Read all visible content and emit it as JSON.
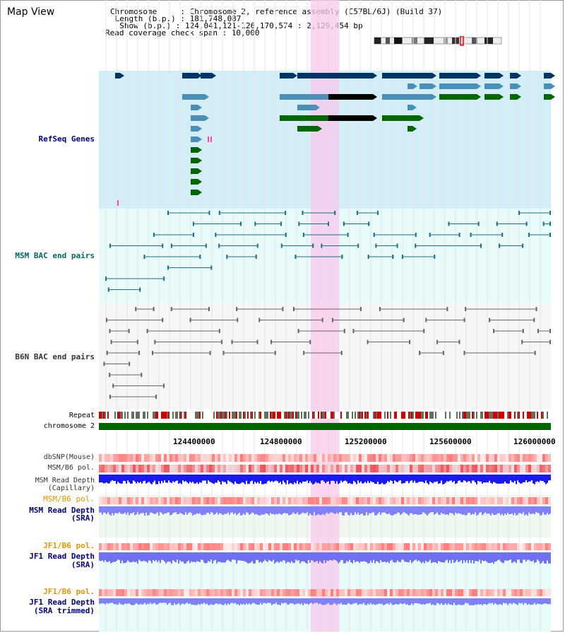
{
  "view_title": "Map View",
  "header": {
    "chromosome_line": "Chromosome     : Chromosome 2, reference assembly (C57BL/6J) (Build 37)",
    "length_line": " Length (b.p.) : 181,748,087",
    "show_line": "  Show (b.p.) : 124,041,121-126,170,574 : 2,129,454 bp",
    "coverage_line": "Read coverage check span : 10,000"
  },
  "tracks": {
    "refseq": "RefSeq Genes",
    "msm_bac": "MSM BAC end pairs",
    "b6n_bac": "B6N BAC end pairs",
    "repeat": "Repeat",
    "chromosome": "chromosome 2",
    "dbsnp": "dbSNP(Mouse)",
    "msm_b6_pol": "MSM/B6 pol.",
    "msm_read_cap_1": "MSM Read Depth",
    "msm_read_cap_2": "(Capillary)",
    "msm_b6_pol_2": "MSM/B6 pol.",
    "msm_read_sra_1": "MSM Read Depth",
    "msm_read_sra_2": "(SRA)",
    "jf1_b6_pol": "JF1/B6 pol.",
    "jf1_read_sra_1": "JF1 Read Depth",
    "jf1_read_sra_2": "(SRA)",
    "jf1_b6_pol_2": "JF1/B6 pol.",
    "jf1_read_trim_1": "JF1 Read Depth",
    "jf1_read_trim_2": "(SRA trimmed)"
  },
  "ruler_ticks": [
    "124400000",
    "124800000",
    "125200000",
    "125600000",
    "126000000"
  ],
  "colors": {
    "refseq_bg": "#d4eef8",
    "bac_bg": "#e8fbfb",
    "b6n_bg": "#f6f6f6",
    "highlight": "#f8d6f0",
    "refseq_dark": "#003366",
    "refseq_mid": "#4a8fb8",
    "refseq_green": "#006600",
    "bac_line": "#1c6e8a",
    "b6n_line": "#666666",
    "chromosome_bar": "#006600",
    "depth_dark": "#1a1af0",
    "depth_light": "#8080f8",
    "label_dark": "#000080",
    "label_msm": "#006666",
    "label_orange": "#e89400",
    "label_gray": "#333333"
  }
}
